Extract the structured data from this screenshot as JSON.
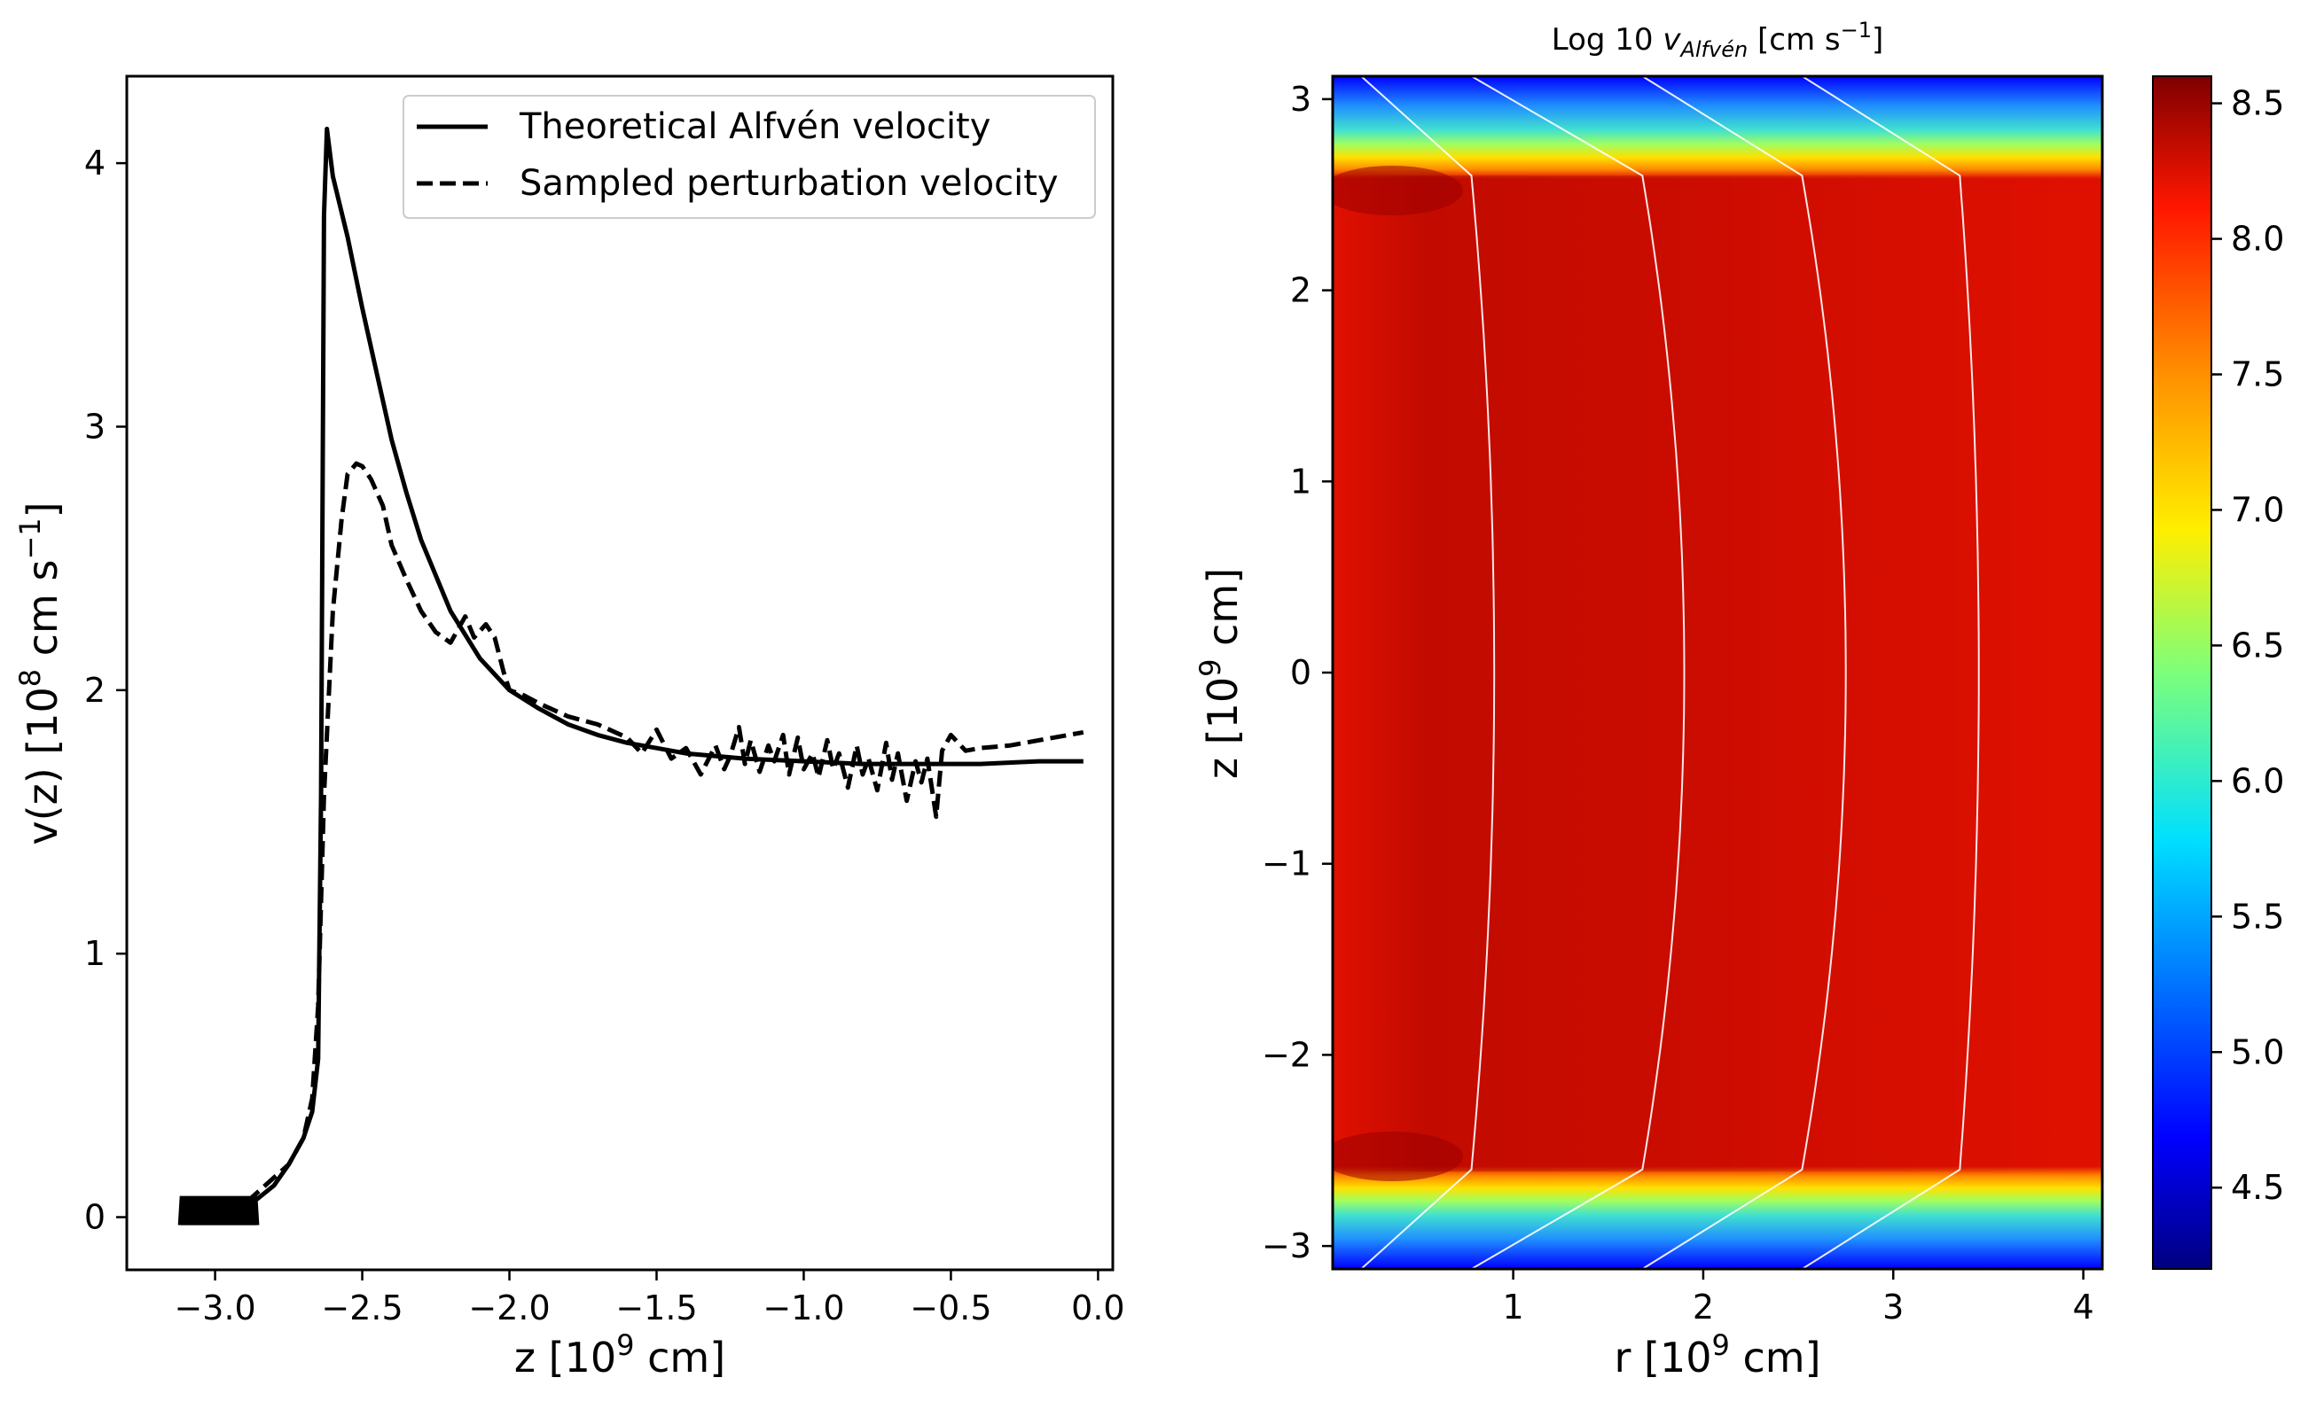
{
  "chart_data": [
    {
      "type": "line",
      "xlabel": "z [10^9 cm]",
      "ylabel": "v(z) [10^8 cm s^-1]",
      "xlim": [
        -3.3,
        0.05
      ],
      "ylim": [
        -0.2,
        4.33
      ],
      "xticks": [
        -3.0,
        -2.5,
        -2.0,
        -1.5,
        -1.0,
        -0.5,
        0.0
      ],
      "xtick_labels": [
        "−3.0",
        "−2.5",
        "−2.0",
        "−1.5",
        "−1.0",
        "−0.5",
        "0.0"
      ],
      "yticks": [
        0,
        1,
        2,
        3,
        4
      ],
      "ytick_labels": [
        "0",
        "1",
        "2",
        "3",
        "4"
      ],
      "legend": "top-right",
      "series": [
        {
          "name": "Theoretical Alfvén velocity",
          "style": "solid",
          "x": [
            -3.12,
            -3.0,
            -2.9,
            -2.8,
            -2.75,
            -2.7,
            -2.67,
            -2.65,
            -2.64,
            -2.63,
            -2.62,
            -2.6,
            -2.55,
            -2.5,
            -2.45,
            -2.4,
            -2.35,
            -2.3,
            -2.2,
            -2.1,
            -2.0,
            -1.9,
            -1.8,
            -1.7,
            -1.6,
            -1.5,
            -1.4,
            -1.2,
            -1.0,
            -0.8,
            -0.6,
            -0.4,
            -0.2,
            -0.05
          ],
          "values": [
            0.01,
            0.02,
            0.03,
            0.12,
            0.2,
            0.3,
            0.4,
            0.6,
            1.6,
            3.8,
            4.13,
            3.95,
            3.72,
            3.45,
            3.2,
            2.95,
            2.75,
            2.57,
            2.3,
            2.12,
            2.0,
            1.93,
            1.87,
            1.83,
            1.8,
            1.78,
            1.76,
            1.74,
            1.73,
            1.72,
            1.72,
            1.72,
            1.73,
            1.73
          ]
        },
        {
          "name": "Sampled perturbation velocity",
          "style": "dashed",
          "x": [
            -3.12,
            -3.0,
            -2.9,
            -2.85,
            -2.8,
            -2.75,
            -2.7,
            -2.67,
            -2.65,
            -2.63,
            -2.6,
            -2.57,
            -2.55,
            -2.52,
            -2.5,
            -2.47,
            -2.43,
            -2.4,
            -2.35,
            -2.3,
            -2.25,
            -2.2,
            -2.15,
            -2.12,
            -2.08,
            -2.05,
            -2.02,
            -2.0,
            -1.95,
            -1.9,
            -1.8,
            -1.7,
            -1.6,
            -1.55,
            -1.5,
            -1.45,
            -1.4,
            -1.35,
            -1.3,
            -1.27,
            -1.25,
            -1.22,
            -1.2,
            -1.18,
            -1.15,
            -1.12,
            -1.1,
            -1.07,
            -1.05,
            -1.02,
            -1.0,
            -0.97,
            -0.95,
            -0.92,
            -0.9,
            -0.88,
            -0.85,
            -0.82,
            -0.8,
            -0.78,
            -0.75,
            -0.72,
            -0.7,
            -0.68,
            -0.65,
            -0.62,
            -0.6,
            -0.58,
            -0.55,
            -0.53,
            -0.5,
            -0.45,
            -0.4,
            -0.3,
            -0.2,
            -0.1,
            -0.05
          ],
          "values": [
            0.01,
            0.02,
            0.05,
            0.1,
            0.15,
            0.2,
            0.3,
            0.45,
            0.8,
            1.6,
            2.3,
            2.65,
            2.82,
            2.86,
            2.85,
            2.8,
            2.7,
            2.55,
            2.42,
            2.3,
            2.22,
            2.18,
            2.28,
            2.2,
            2.25,
            2.2,
            2.07,
            2.0,
            1.98,
            1.95,
            1.9,
            1.87,
            1.82,
            1.76,
            1.85,
            1.74,
            1.78,
            1.68,
            1.79,
            1.7,
            1.75,
            1.86,
            1.72,
            1.81,
            1.69,
            1.79,
            1.73,
            1.83,
            1.68,
            1.82,
            1.7,
            1.76,
            1.67,
            1.81,
            1.7,
            1.76,
            1.63,
            1.79,
            1.68,
            1.74,
            1.62,
            1.8,
            1.66,
            1.76,
            1.58,
            1.73,
            1.65,
            1.74,
            1.52,
            1.77,
            1.83,
            1.77,
            1.78,
            1.79,
            1.81,
            1.83,
            1.84
          ]
        }
      ]
    },
    {
      "type": "heatmap",
      "title": "Log 10 v_Alfvén [cm s^-1]",
      "xlabel": "r [10^9 cm]",
      "ylabel": "z [10^9 cm]",
      "xlim": [
        0.05,
        4.1
      ],
      "ylim": [
        -3.12,
        3.12
      ],
      "xticks": [
        1,
        2,
        3,
        4
      ],
      "xtick_labels": [
        "1",
        "2",
        "3",
        "4"
      ],
      "yticks": [
        -3,
        -2,
        -1,
        0,
        1,
        2,
        3
      ],
      "ytick_labels": [
        "−3",
        "−2",
        "−1",
        "0",
        "1",
        "2",
        "3"
      ],
      "colormap": "jet",
      "colorbar_range": [
        4.2,
        8.6
      ],
      "colorbar_ticks": [
        4.5,
        5.0,
        5.5,
        6.0,
        6.5,
        7.0,
        7.5,
        8.0,
        8.5
      ],
      "colorbar_tick_labels": [
        "4.5",
        "5.0",
        "5.5",
        "6.0",
        "6.5",
        "7.0",
        "7.5",
        "8.0",
        "8.5"
      ],
      "interior_value": 8.4,
      "outer_value": 4.4,
      "interface_z": 2.6,
      "field_lines_mid_r": [
        0.9,
        1.9,
        2.75,
        3.45
      ],
      "field_lines_end_r": [
        0.2,
        0.78,
        1.68,
        2.52,
        3.35
      ]
    }
  ],
  "colors": {
    "line": "#000000",
    "field_line": "#ffffff"
  }
}
